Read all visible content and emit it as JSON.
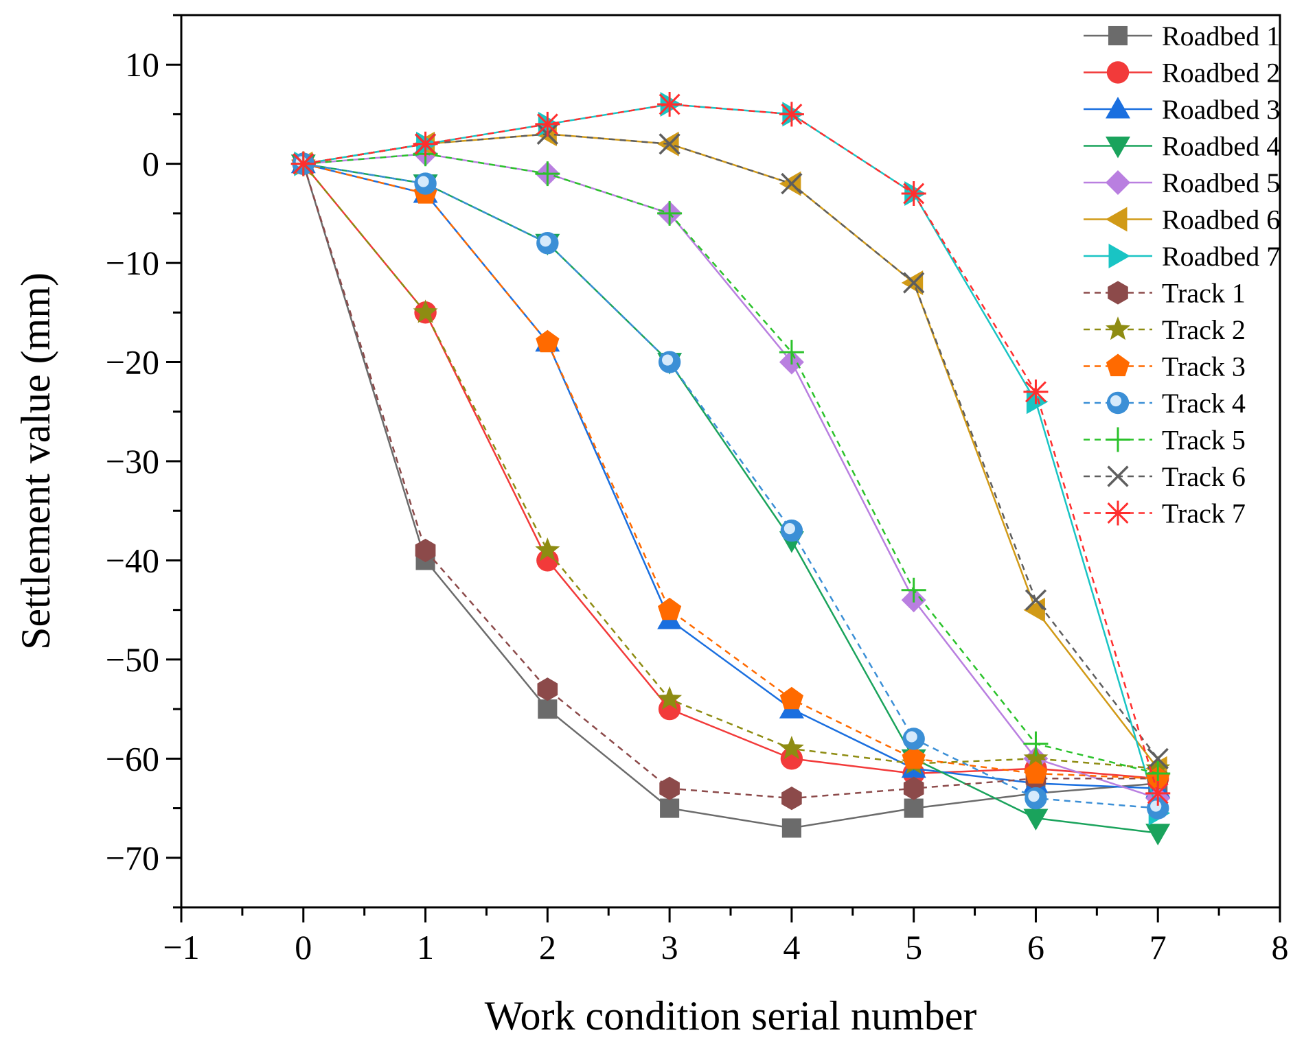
{
  "chart_data": {
    "type": "line",
    "title": "",
    "xlabel": "Work condition serial number",
    "ylabel": "Settlement value (mm)",
    "xlim": [
      -1,
      8
    ],
    "ylim": [
      -75,
      15
    ],
    "xticks": [
      -1,
      0,
      1,
      2,
      3,
      4,
      5,
      6,
      7,
      8
    ],
    "yticks": [
      10,
      0,
      -10,
      -20,
      -30,
      -40,
      -50,
      -60,
      -70
    ],
    "xtick_labels": [
      "−1",
      "0",
      "1",
      "2",
      "3",
      "4",
      "5",
      "6",
      "7",
      "8"
    ],
    "ytick_labels": [
      "10",
      "0",
      "−10",
      "−20",
      "−30",
      "−40",
      "−50",
      "−60",
      "−70"
    ],
    "x": [
      0,
      1,
      2,
      3,
      4,
      5,
      6,
      7
    ],
    "legend_position": "top-right",
    "series": [
      {
        "name": "Roadbed 1",
        "color": "#6b6b6b",
        "line": "solid",
        "marker": "square",
        "values": [
          0,
          -40,
          -55,
          -65,
          -67,
          -65,
          -63.5,
          -62.5
        ]
      },
      {
        "name": "Roadbed 2",
        "color": "#f23a3a",
        "line": "solid",
        "marker": "circle",
        "values": [
          0,
          -15,
          -40,
          -55,
          -60,
          -61.5,
          -61,
          -62
        ]
      },
      {
        "name": "Roadbed 3",
        "color": "#1a6fdf",
        "line": "solid",
        "marker": "triangle-up",
        "values": [
          0,
          -3,
          -18,
          -46,
          -55,
          -61,
          -62.5,
          -63
        ]
      },
      {
        "name": "Roadbed 4",
        "color": "#1aa35c",
        "line": "solid",
        "marker": "triangle-down",
        "values": [
          0,
          -2,
          -8,
          -20,
          -38,
          -60,
          -66,
          -67.5
        ]
      },
      {
        "name": "Roadbed 5",
        "color": "#b97fe0",
        "line": "solid",
        "marker": "diamond",
        "values": [
          0,
          1,
          -1,
          -5,
          -20,
          -44,
          -60,
          -64
        ]
      },
      {
        "name": "Roadbed 6",
        "color": "#d19a17",
        "line": "solid",
        "marker": "triangle-left",
        "values": [
          0,
          2,
          3,
          2,
          -2,
          -12,
          -45,
          -61
        ]
      },
      {
        "name": "Roadbed 7",
        "color": "#19c4c4",
        "line": "solid",
        "marker": "triangle-right",
        "values": [
          0,
          2,
          4,
          6,
          5,
          -3,
          -24,
          -65.5
        ]
      },
      {
        "name": "Track 1",
        "color": "#8c4a4a",
        "line": "dashed",
        "marker": "hexagon",
        "values": [
          0,
          -39,
          -53,
          -63,
          -64,
          -63,
          -62,
          -62
        ]
      },
      {
        "name": "Track 2",
        "color": "#8e8c12",
        "line": "dashed",
        "marker": "star",
        "values": [
          0,
          -15,
          -39,
          -54,
          -59,
          -60.5,
          -60,
          -61
        ]
      },
      {
        "name": "Track 3",
        "color": "#ff6a00",
        "line": "dashed",
        "marker": "pentagon",
        "values": [
          0,
          -3,
          -18,
          -45,
          -54,
          -60,
          -61.5,
          -62
        ]
      },
      {
        "name": "Track 4",
        "color": "#3b8fd6",
        "line": "dashed",
        "marker": "sphere",
        "values": [
          0,
          -2,
          -8,
          -20,
          -37,
          -58,
          -64,
          -65
        ]
      },
      {
        "name": "Track 5",
        "color": "#2bc22b",
        "line": "dashed",
        "marker": "plus",
        "values": [
          0,
          1,
          -1,
          -5,
          -19,
          -43,
          -58.5,
          -61.5
        ]
      },
      {
        "name": "Track 6",
        "color": "#5e5e5e",
        "line": "dashed",
        "marker": "x",
        "values": [
          0,
          2,
          3,
          2,
          -2,
          -12,
          -44,
          -60
        ]
      },
      {
        "name": "Track 7",
        "color": "#ff2e2e",
        "line": "dashed",
        "marker": "asterisk",
        "values": [
          0,
          2,
          4,
          6,
          5,
          -3,
          -23,
          -63.5
        ]
      }
    ]
  }
}
